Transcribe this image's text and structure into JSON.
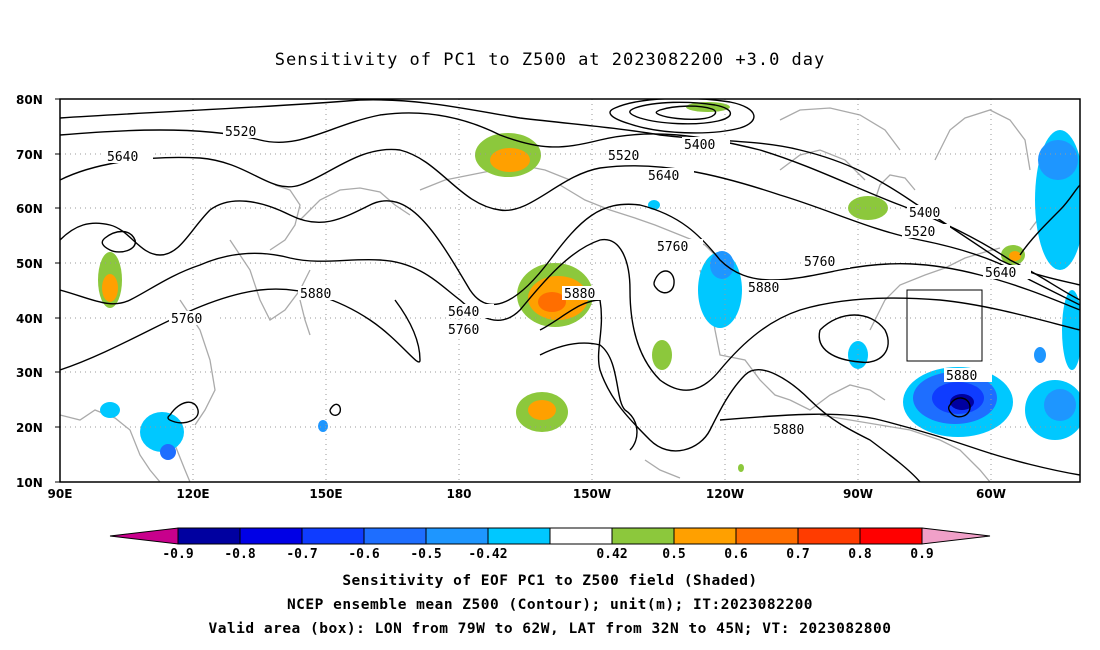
{
  "title": "Sensitivity of PC1 to Z500 at 2023082200 +3.0 day",
  "lat_labels": [
    "80N",
    "70N",
    "60N",
    "50N",
    "40N",
    "30N",
    "20N",
    "10N"
  ],
  "lon_labels": [
    "90E",
    "120E",
    "150E",
    "180",
    "150W",
    "120W",
    "90W",
    "60W"
  ],
  "contour_labels": [
    {
      "text": "5520",
      "id": "contour-label-5520-a"
    },
    {
      "text": "5640",
      "id": "contour-label-5640-a"
    },
    {
      "text": "5520",
      "id": "contour-label-5520-b"
    },
    {
      "text": "5400",
      "id": "contour-label-5400-a"
    },
    {
      "text": "5640",
      "id": "contour-label-5640-b"
    },
    {
      "text": "5400",
      "id": "contour-label-5400-b"
    },
    {
      "text": "5520",
      "id": "contour-label-5520-c"
    },
    {
      "text": "5760",
      "id": "contour-label-5760-a"
    },
    {
      "text": "5760",
      "id": "contour-label-5760-b"
    },
    {
      "text": "5640",
      "id": "contour-label-5640-c"
    },
    {
      "text": "5880",
      "id": "contour-label-5880-a"
    },
    {
      "text": "5880",
      "id": "contour-label-5880-b"
    },
    {
      "text": "5640",
      "id": "contour-label-5640-d"
    },
    {
      "text": "5760",
      "id": "contour-label-5760-c"
    },
    {
      "text": "5760",
      "id": "contour-label-5760-d"
    },
    {
      "text": "5880",
      "id": "contour-label-5880-c"
    },
    {
      "text": "5880",
      "id": "contour-label-5880-d"
    },
    {
      "text": "5880",
      "id": "contour-label-5880-e"
    }
  ],
  "colorbar": {
    "labels": [
      "-0.9",
      "-0.8",
      "-0.7",
      "-0.6",
      "-0.5",
      "-0.42",
      "0.42",
      "0.5",
      "0.6",
      "0.7",
      "0.8",
      "0.9"
    ],
    "colors": [
      "#c8008c",
      "#0000a0",
      "#0000e6",
      "#0f3cff",
      "#1e6eff",
      "#1e96ff",
      "#00c8ff",
      "#ffffff",
      "#8cc83c",
      "#ffa000",
      "#ff6e00",
      "#ff3c00",
      "#ff0000",
      "#f0a0c8"
    ]
  },
  "caption": {
    "line1": "Sensitivity of EOF PC1 to Z500 field (Shaded)",
    "line2": "NCEP ensemble mean Z500 (Contour); unit(m); IT:2023082200",
    "line3": "Valid area (box): LON from 79W to 62W, LAT from 32N to 45N; VT: 2023082800"
  },
  "colors": {
    "positive_weak": "#8cc83c",
    "positive_mid": "#ffa000",
    "positive_strong": "#ff6e00",
    "negative_weak": "#00c8ff",
    "negative_mid": "#1e6eff",
    "negative_strong": "#0000e6",
    "coastline": "#aaaaaa"
  }
}
